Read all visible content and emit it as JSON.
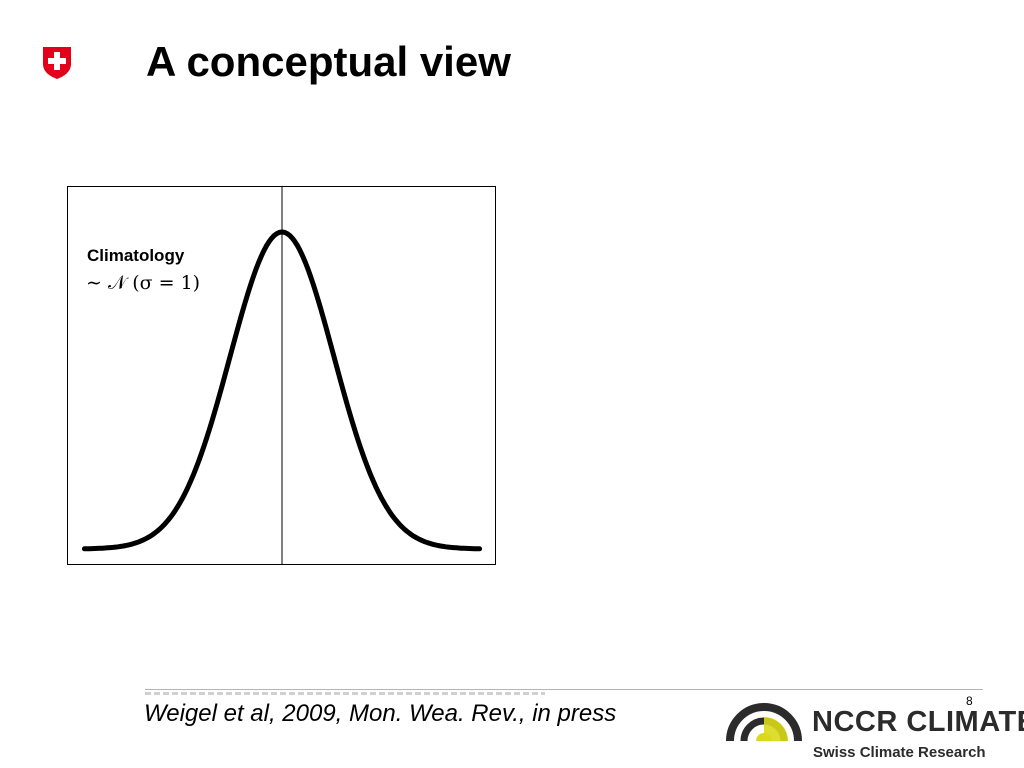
{
  "slide": {
    "title": "A conceptual view",
    "page_number": "8"
  },
  "figure": {
    "curve_label": "Climatology",
    "curve_formula": "∼ 𝒩 (σ = 1)",
    "distribution": {
      "mean": 0,
      "sigma": 1
    }
  },
  "footer": {
    "citation": "Weigel et al, 2009, Mon. Wea. Rev., in press",
    "org_name": "NCCR CLIMATE",
    "org_subtitle": "Swiss Climate Research"
  },
  "colors": {
    "swiss_red": "#e3001b",
    "nccr_yellow": "#d9d91a",
    "nccr_dark": "#2b2b2b"
  },
  "icons": {
    "government_logo": "swiss-cross-shield-icon",
    "org_logo": "nccr-arc-logo-icon"
  }
}
